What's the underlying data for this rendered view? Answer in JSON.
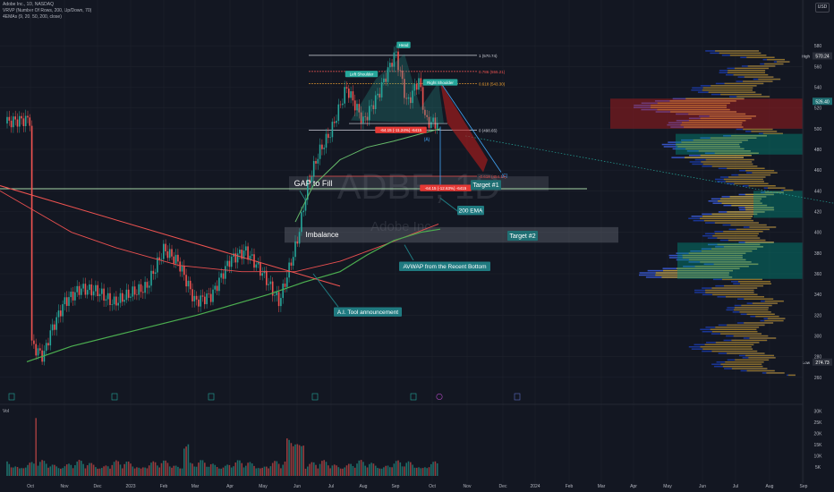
{
  "header": {
    "title_line": "Adobe Inc., 1D, NASDAQ",
    "indicator_1": "VRVP (Number Of Rows, 200, Up/Down, 70)",
    "indicator_2": "4EMAs (9, 20, 50, 200, close)",
    "currency": "USD"
  },
  "watermark": {
    "ticker": "ADBE, 1D",
    "company": "Adobe Inc."
  },
  "volume_label": "Vol",
  "colors": {
    "background": "#131722",
    "up": "#26a69a",
    "down": "#ef5350",
    "ema200": "#e84f4f",
    "avwap": "#4caf50",
    "fib_line": "#d1d4dc",
    "gap_line": "#a5d6a7",
    "callout": "#1f7a80",
    "target_box": "#1f6f73"
  },
  "chart_data": {
    "type": "candlestick",
    "symbol": "ADBE",
    "timeframe": "1D",
    "ylim": [
      240,
      600
    ],
    "x_ticks": [
      "Oct",
      "Nov",
      "Dec",
      "2023",
      "Feb",
      "Mar",
      "Apr",
      "May",
      "Jun",
      "Jul",
      "Aug",
      "Sep",
      "Oct",
      "Nov",
      "Dec",
      "2024",
      "Feb",
      "Mar",
      "Apr",
      "May",
      "Jun",
      "Jul",
      "Aug",
      "Sep"
    ],
    "y_ticks": [
      260,
      280,
      300,
      320,
      340,
      360,
      380,
      400,
      420,
      440,
      460,
      480,
      500,
      520,
      540,
      560,
      580
    ],
    "price_labels": {
      "high": "570.24",
      "current": "526.40",
      "low": "274.73",
      "high_tag": "High",
      "low_tag": "Low"
    },
    "volume_ticks": [
      "5K",
      "10K",
      "15K",
      "20K",
      "25K",
      "30K"
    ],
    "price_path": [
      [
        "Oct",
        290
      ],
      [
        "Oct",
        282
      ],
      [
        "Oct",
        276
      ],
      [
        "Oct",
        298
      ],
      [
        "Nov",
        330
      ],
      [
        "Nov",
        345
      ],
      [
        "Dec",
        345
      ],
      [
        "Dec",
        335
      ],
      [
        "2023",
        345
      ],
      [
        "2023",
        350
      ],
      [
        "Feb",
        385
      ],
      [
        "Feb",
        370
      ],
      [
        "Mar",
        330
      ],
      [
        "Mar",
        335
      ],
      [
        "Apr",
        370
      ],
      [
        "Apr",
        380
      ],
      [
        "May",
        360
      ],
      [
        "May",
        335
      ],
      [
        "Jun",
        395
      ],
      [
        "Jun",
        450
      ],
      [
        "Jun",
        480
      ],
      [
        "Jul",
        500
      ],
      [
        "Jul",
        540
      ],
      [
        "Aug",
        505
      ],
      [
        "Aug",
        530
      ],
      [
        "Sep",
        570
      ],
      [
        "Sep",
        520
      ],
      [
        "Sep",
        545
      ],
      [
        "Oct",
        505
      ]
    ],
    "fibonacci": [
      {
        "label": "1 (570.74)",
        "value": 570.74
      },
      {
        "label": "0.786 (555.21)",
        "value": 555.21
      },
      {
        "label": "0.618 (543.30)",
        "value": 543.3
      },
      {
        "label": "0 (498.65)",
        "value": 498.65
      },
      {
        "label": "-0.618 (454.10)",
        "value": 454.1
      }
    ],
    "volume_profile_levels": [
      540,
      520,
      500,
      480,
      460,
      440,
      420,
      400,
      380,
      360,
      340,
      320,
      300,
      280
    ]
  },
  "annotations": {
    "head": "Head",
    "left_shoulder": "Left Shoulder",
    "right_shoulder": "Right Shoulder",
    "measure_1": "-64.15 (-11.24%) -6415",
    "measure_2": "-64.15 (-12.63%) -6415",
    "point_a": "(A)",
    "point_c": "(C)",
    "gap_to_fill": "GAP to Fill",
    "target_1": "Target #1",
    "target_2": "Target #2",
    "imbalance": "Imbalance",
    "ema200_callout": "200 EMA",
    "avwap_callout": "AVWAP from the Recent Bottom",
    "ai_callout": "A.I. Tool announcement"
  }
}
